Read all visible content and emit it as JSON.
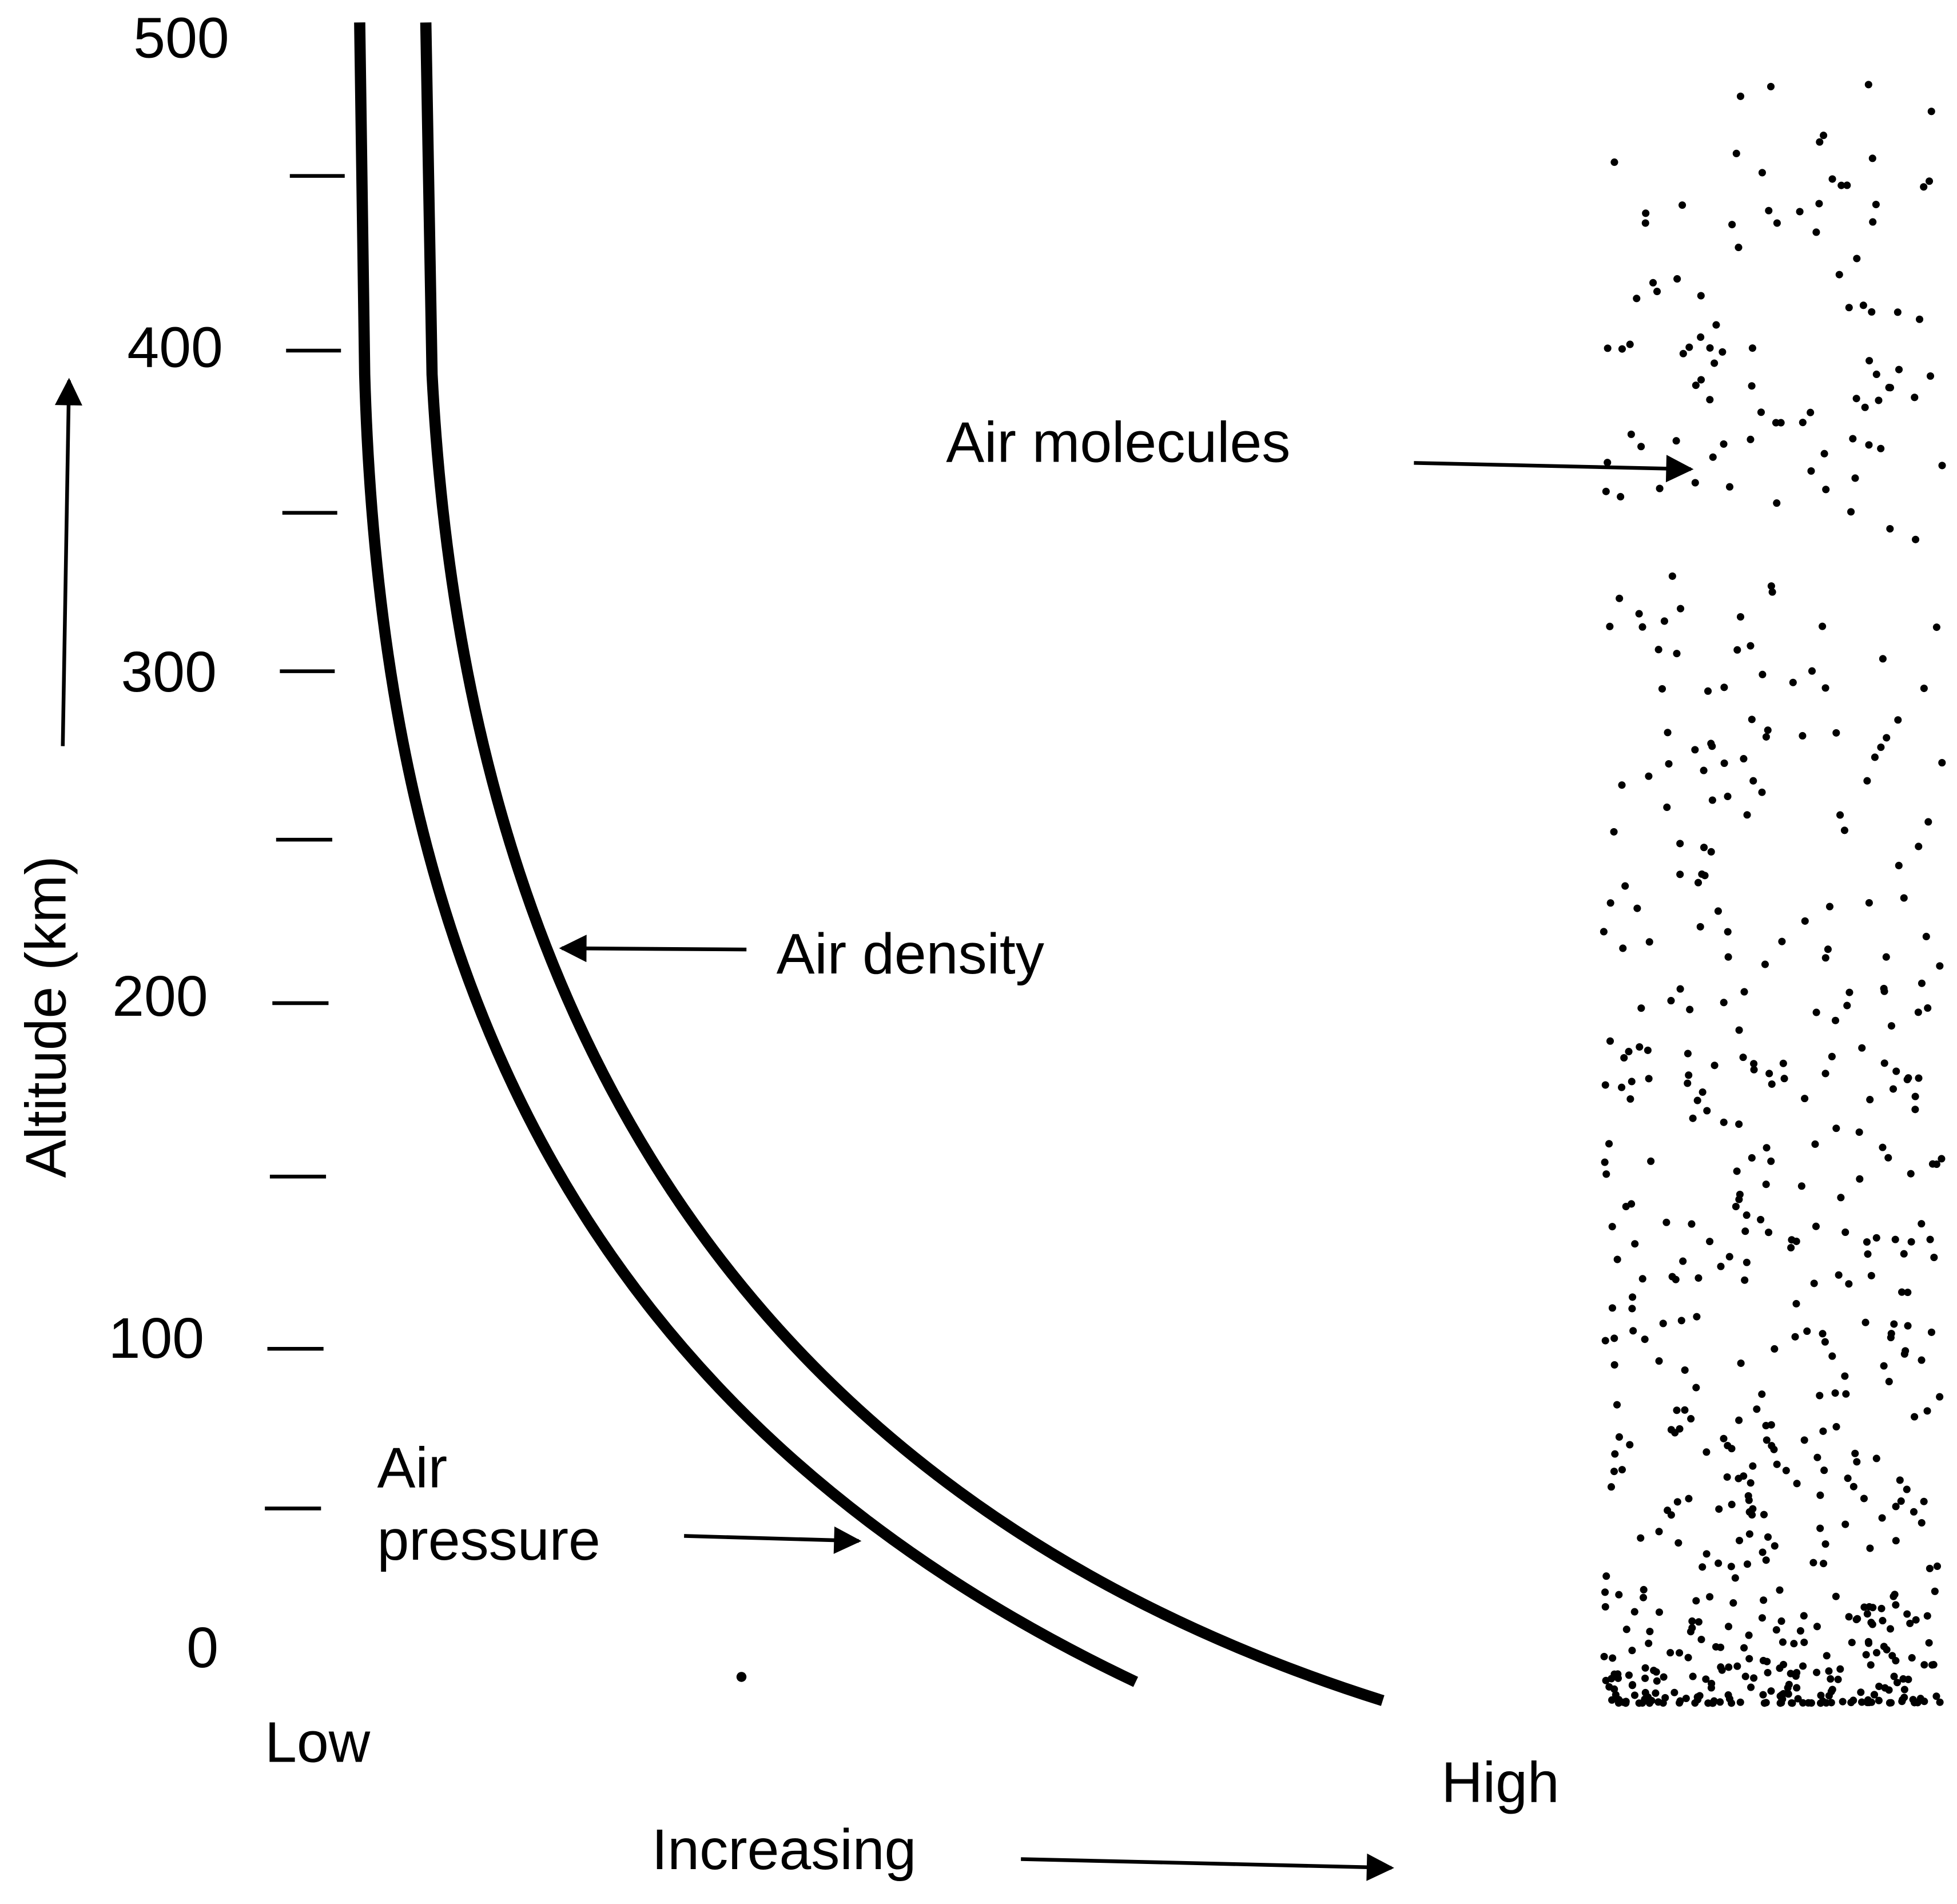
{
  "y_axis": {
    "title": "Altitude (km)",
    "ticks": [
      "500",
      "400",
      "300",
      "200",
      "100",
      "0"
    ]
  },
  "x_axis": {
    "low": "Low",
    "high": "High",
    "direction": "Increasing"
  },
  "labels": {
    "air_molecules": "Air molecules",
    "air_density": "Air density",
    "air_pressure": [
      "Air",
      "pressure"
    ]
  }
}
